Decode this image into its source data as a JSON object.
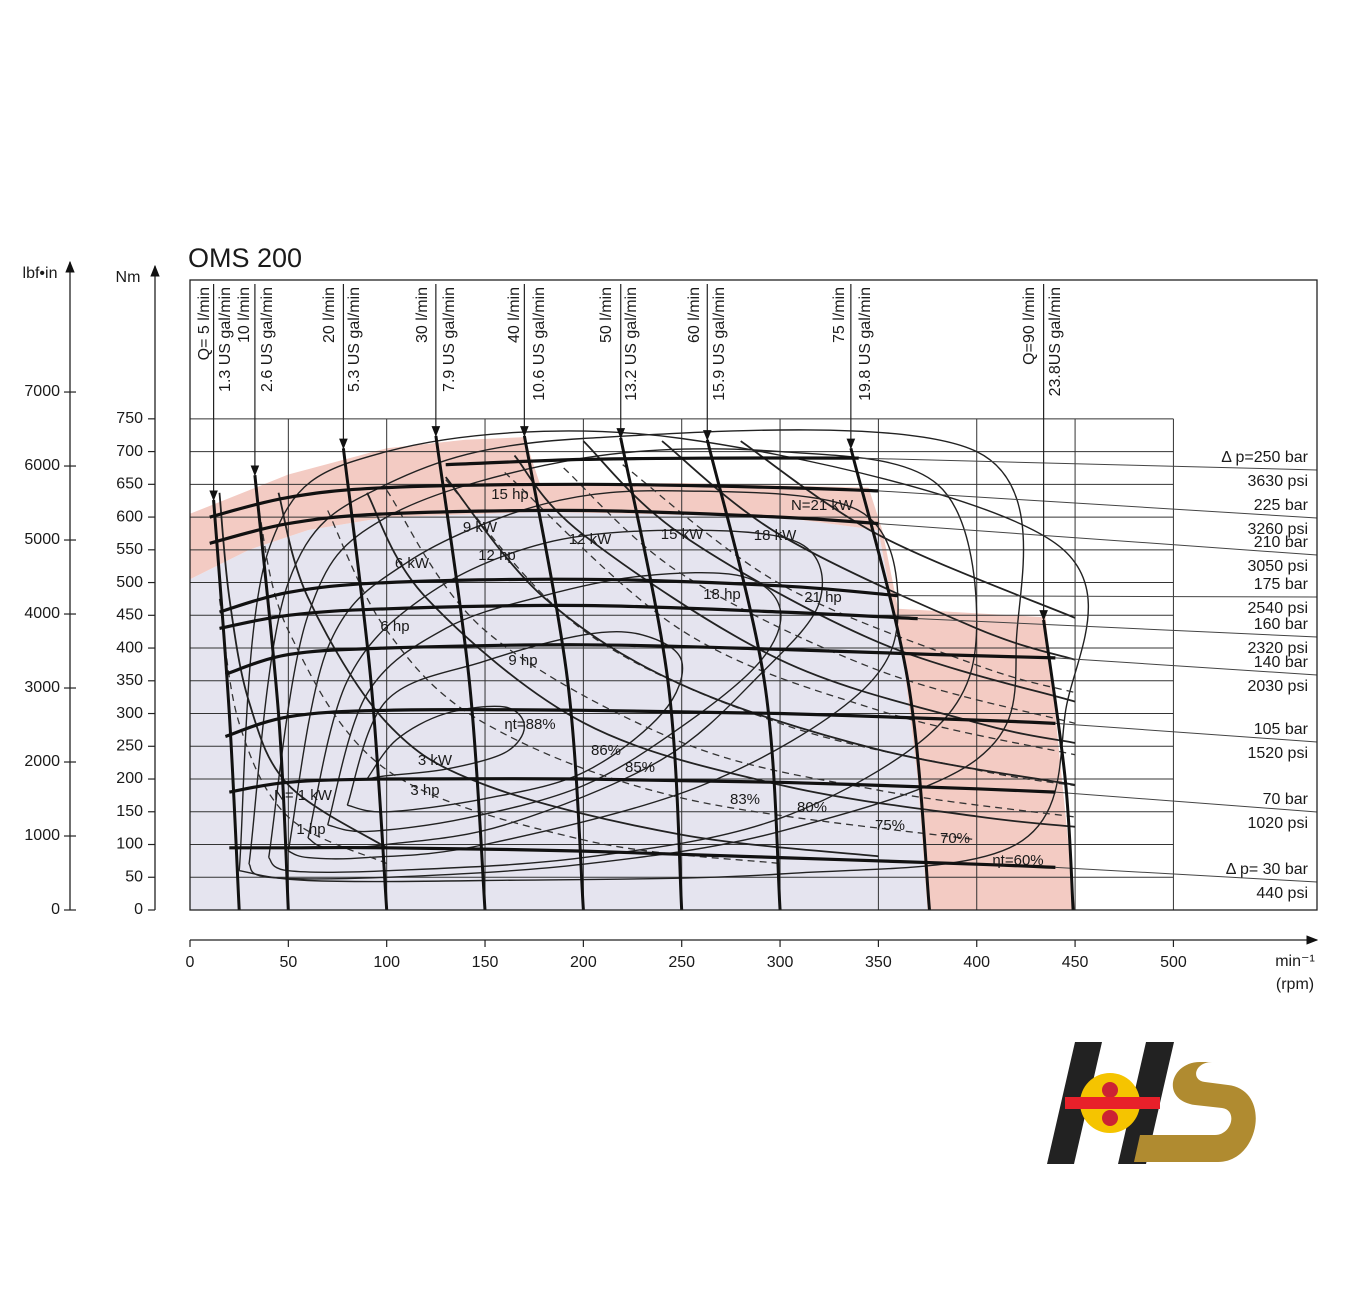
{
  "chart_data": {
    "type": "performance",
    "title": "OMS 200",
    "xlabel": "min⁻¹",
    "xunit": "(rpm)",
    "ylabel": "Nm",
    "y2label": "lbf•in",
    "xlim": [
      0,
      573
    ],
    "ylim": [
      0,
      962
    ],
    "y2lim": [
      0,
      8514
    ],
    "xticks": [
      0,
      50,
      100,
      150,
      200,
      250,
      300,
      350,
      400,
      450,
      500
    ],
    "yticks": [
      0,
      50,
      100,
      150,
      200,
      250,
      300,
      350,
      400,
      450,
      500,
      550,
      600,
      650,
      700,
      750
    ],
    "y2ticks": [
      0,
      1000,
      2000,
      3000,
      4000,
      5000,
      6000,
      7000
    ],
    "grid": true,
    "regions": [
      {
        "color": "#e5e4ef",
        "x": [
          0,
          0,
          30,
          60,
          100,
          180,
          300,
          350,
          355,
          362,
          370,
          375
        ],
        "values": [
          0,
          505,
          550,
          580,
          600,
          608,
          600,
          580,
          500,
          400,
          200,
          0
        ]
      },
      {
        "color": "#f3cbc3",
        "x": [
          0,
          50,
          100,
          140,
          170,
          178,
          250,
          345,
          352,
          360,
          435,
          450,
          375,
          370,
          362,
          355,
          350,
          300,
          180,
          100,
          60,
          30,
          0
        ],
        "values": [
          605,
          665,
          705,
          718,
          722,
          650,
          652,
          645,
          580,
          460,
          447,
          0,
          0,
          200,
          400,
          500,
          580,
          600,
          608,
          600,
          580,
          550,
          505
        ]
      }
    ],
    "pressure": [
      {
        "name": "Δ p=250 bar",
        "psi": "3630 psi",
        "x": [
          130,
          200,
          270,
          340
        ],
        "values": [
          680,
          688,
          690,
          690
        ]
      },
      {
        "name": "225 bar",
        "psi": "3260 psi",
        "x": [
          10,
          50,
          100,
          200,
          300,
          350
        ],
        "values": [
          600,
          630,
          645,
          650,
          645,
          640
        ]
      },
      {
        "name": "210 bar",
        "psi": "3050 psi",
        "x": [
          10,
          50,
          100,
          200,
          300,
          350
        ],
        "values": [
          560,
          590,
          605,
          610,
          600,
          590
        ]
      },
      {
        "name": "175 bar",
        "psi": "2540 psi",
        "x": [
          15,
          50,
          100,
          200,
          300,
          360
        ],
        "values": [
          455,
          485,
          500,
          505,
          495,
          480
        ]
      },
      {
        "name": "160 bar",
        "psi": "2320 psi",
        "x": [
          15,
          50,
          100,
          200,
          300,
          370
        ],
        "values": [
          430,
          450,
          460,
          465,
          455,
          445
        ]
      },
      {
        "name": "140 bar",
        "psi": "2030 psi",
        "x": [
          18,
          50,
          100,
          200,
          300,
          380,
          440
        ],
        "values": [
          360,
          390,
          400,
          405,
          398,
          390,
          385
        ]
      },
      {
        "name": "105 bar",
        "psi": "1520 psi",
        "x": [
          18,
          50,
          100,
          200,
          300,
          400,
          440
        ],
        "values": [
          265,
          295,
          305,
          305,
          300,
          290,
          285
        ]
      },
      {
        "name": "70 bar",
        "psi": "1020 psi",
        "x": [
          20,
          50,
          100,
          200,
          300,
          400,
          440
        ],
        "values": [
          180,
          195,
          200,
          200,
          195,
          185,
          180
        ]
      },
      {
        "name": "Δ p= 30 bar",
        "psi": "440 psi",
        "x": [
          20,
          50,
          100,
          200,
          300,
          400,
          440
        ],
        "values": [
          95,
          95,
          95,
          90,
          80,
          70,
          65
        ]
      }
    ],
    "flow": [
      {
        "name": "Q= 5 l/min",
        "gpm": "1.3 US gal/min",
        "x": [
          12,
          20,
          25
        ],
        "values": [
          626,
          300,
          0
        ]
      },
      {
        "name": "10 l/min",
        "gpm": "2.6 US gal/min",
        "x": [
          33,
          45,
          50
        ],
        "values": [
          664,
          300,
          0
        ]
      },
      {
        "name": "20 l/min",
        "gpm": "5.3 US gal/min",
        "x": [
          78,
          92,
          100
        ],
        "values": [
          705,
          350,
          0
        ]
      },
      {
        "name": "30 l/min",
        "gpm": "7.9 US gal/min",
        "x": [
          125,
          142,
          150
        ],
        "values": [
          724,
          350,
          0
        ]
      },
      {
        "name": "40 l/min",
        "gpm": "10.6 US gal/min",
        "x": [
          170,
          192,
          200
        ],
        "values": [
          724,
          350,
          0
        ]
      },
      {
        "name": "50 l/min",
        "gpm": "13.2 US gal/min",
        "x": [
          219,
          243,
          250
        ],
        "values": [
          721,
          350,
          0
        ]
      },
      {
        "name": "60 l/min",
        "gpm": "15.9 US gal/min",
        "x": [
          263,
          292,
          300
        ],
        "values": [
          718,
          350,
          0
        ]
      },
      {
        "name": "75 l/min",
        "gpm": "19.8 US gal/min",
        "x": [
          336,
          365,
          376
        ],
        "values": [
          705,
          350,
          0
        ]
      },
      {
        "name": "Q=90 l/min",
        "gpm": "23.8US gal/min",
        "x": [
          434,
          445,
          449
        ],
        "values": [
          443,
          200,
          0
        ]
      }
    ],
    "power_kw": [
      {
        "name": "N= 1 kW",
        "x": [
          15,
          20,
          30,
          50,
          100
        ],
        "values": [
          637,
          477,
          318,
          191,
          95
        ]
      },
      {
        "name": "3 kW",
        "x": [
          45,
          60,
          100,
          150,
          250,
          350
        ],
        "values": [
          637,
          477,
          286,
          191,
          115,
          82
        ]
      },
      {
        "name": "6 kW",
        "x": [
          90,
          120,
          200,
          300,
          400,
          450
        ],
        "values": [
          637,
          477,
          286,
          191,
          143,
          127
        ]
      },
      {
        "name": "9 kW",
        "x": [
          130,
          180,
          250,
          350,
          450
        ],
        "values": [
          661,
          477,
          344,
          245,
          191
        ]
      },
      {
        "name": "12 kW",
        "x": [
          165,
          200,
          300,
          400,
          450
        ],
        "values": [
          694,
          573,
          382,
          286,
          255
        ]
      },
      {
        "name": "15 kW",
        "x": [
          200,
          250,
          350,
          450
        ],
        "values": [
          716,
          573,
          409,
          318
        ]
      },
      {
        "name": "18 kW",
        "x": [
          240,
          300,
          400,
          450
        ],
        "values": [
          716,
          573,
          430,
          382
        ]
      },
      {
        "name": "N=21 kW",
        "x": [
          280,
          350,
          450
        ],
        "values": [
          716,
          573,
          446
        ]
      }
    ],
    "power_hp": [
      {
        "name": "1 hp",
        "x": [
          15,
          25,
          50,
          100
        ],
        "values": [
          475,
          285,
          142,
          71
        ]
      },
      {
        "name": "3 hp",
        "x": [
          35,
          50,
          100,
          200,
          300
        ],
        "values": [
          610,
          427,
          214,
          107,
          71
        ]
      },
      {
        "name": "6 hp",
        "x": [
          70,
          100,
          150,
          250,
          400
        ],
        "values": [
          610,
          427,
          285,
          171,
          107
        ]
      },
      {
        "name": "9 hp",
        "x": [
          100,
          150,
          250,
          350,
          450
        ],
        "values": [
          641,
          427,
          256,
          183,
          142
        ]
      },
      {
        "name": "12 hp",
        "x": [
          130,
          200,
          300,
          400,
          450
        ],
        "values": [
          657,
          427,
          285,
          214,
          190
        ]
      },
      {
        "name": "15 hp",
        "x": [
          160,
          250,
          350,
          450
        ],
        "values": [
          668,
          427,
          305,
          237
        ]
      },
      {
        "name": "18 hp",
        "x": [
          190,
          250,
          350,
          450
        ],
        "values": [
          675,
          513,
          366,
          285
        ]
      },
      {
        "name": "21 hp",
        "x": [
          220,
          300,
          400,
          450
        ],
        "values": [
          680,
          498,
          374,
          332
        ]
      }
    ],
    "efficiency": [
      {
        "name": "ηt=88%",
        "x": [
          90,
          105,
          130,
          160,
          170,
          160,
          130,
          100,
          90
        ],
        "values": [
          200,
          260,
          300,
          310,
          280,
          240,
          215,
          205,
          200
        ]
      },
      {
        "name": "86%",
        "x": [
          80,
          100,
          150,
          200,
          230,
          250,
          240,
          200,
          150,
          100,
          80
        ],
        "values": [
          160,
          320,
          380,
          420,
          420,
          380,
          300,
          210,
          170,
          150,
          160
        ]
      },
      {
        "name": "85%",
        "x": [
          70,
          90,
          130,
          180,
          230,
          280,
          300,
          290,
          250,
          200,
          140,
          90,
          70
        ],
        "values": [
          130,
          330,
          430,
          480,
          510,
          510,
          460,
          380,
          280,
          190,
          140,
          120,
          130
        ]
      },
      {
        "name": "83%",
        "x": [
          60,
          80,
          120,
          180,
          250,
          310,
          320,
          290,
          240,
          160,
          100,
          70,
          60
        ],
        "values": [
          110,
          350,
          480,
          560,
          580,
          560,
          470,
          360,
          230,
          130,
          100,
          95,
          110
        ]
      },
      {
        "name": "80%",
        "x": [
          50,
          70,
          110,
          180,
          250,
          340,
          360,
          340,
          260,
          150,
          90,
          60,
          50
        ],
        "values": [
          90,
          400,
          530,
          620,
          640,
          610,
          460,
          330,
          190,
          100,
          80,
          80,
          90
        ]
      },
      {
        "name": "75%",
        "x": [
          40,
          60,
          100,
          200,
          300,
          380,
          400,
          380,
          300,
          200,
          100,
          50,
          40
        ],
        "values": [
          80,
          450,
          600,
          690,
          700,
          650,
          440,
          280,
          140,
          80,
          60,
          60,
          80
        ]
      },
      {
        "name": "70%",
        "x": [
          30,
          50,
          100,
          200,
          400,
          420,
          400,
          300,
          200,
          100,
          40,
          30
        ],
        "values": [
          70,
          500,
          650,
          720,
          700,
          400,
          230,
          120,
          70,
          50,
          50,
          70
        ]
      },
      {
        "name": "ηt=60%",
        "x": [
          25,
          40,
          100,
          250,
          440,
          445,
          420,
          300,
          150,
          60,
          25
        ],
        "values": [
          60,
          550,
          700,
          720,
          560,
          300,
          100,
          55,
          45,
          45,
          60
        ]
      }
    ]
  }
}
